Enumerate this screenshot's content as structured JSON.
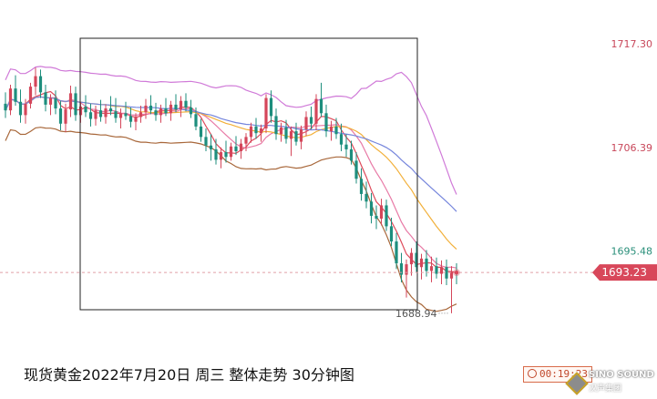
{
  "caption": "现货黄金2022年7月20日 周三 整体走势 30分钟图",
  "timer": "00:19:23",
  "logo": {
    "brand": "SINO SOUND",
    "sub": "汉声集团"
  },
  "colors": {
    "up": "#d4465a",
    "down": "#1d8e7d",
    "boll_upper": "#d07ad8",
    "boll_lower": "#a8673a",
    "ma_red": "#de4a5a",
    "ma_pink": "#e87aa6",
    "ma_orange": "#f2b03a",
    "ma_blue": "#7585dc",
    "price_tag": "#d8475a",
    "axis_text_red": "#c8475a",
    "axis_text_green": "#2a8f7a",
    "current_line": "#e0a0a8"
  },
  "chart_data": {
    "type": "candlestick",
    "title": "现货黄金2022年7月20日 周三 整体走势 30分钟图",
    "ylim": [
      1685.0,
      1720.0
    ],
    "y_ticks": [
      {
        "value": 1717.3,
        "label": "1717.30",
        "color": "red"
      },
      {
        "value": 1706.39,
        "label": "1706.39",
        "color": "red"
      },
      {
        "value": 1695.48,
        "label": "1695.48",
        "color": "green"
      }
    ],
    "current_price": {
      "value": 1693.23,
      "label": "1693.23"
    },
    "low_marker": {
      "value": 1688.94,
      "label": "1688.94",
      "index": 89
    },
    "candles": [
      [
        1711.0,
        1712.2,
        1709.5,
        1710.3
      ],
      [
        1710.3,
        1713.0,
        1709.8,
        1712.6
      ],
      [
        1712.6,
        1714.0,
        1710.8,
        1711.2
      ],
      [
        1711.2,
        1712.5,
        1709.0,
        1709.8
      ],
      [
        1709.8,
        1711.5,
        1708.9,
        1711.0
      ],
      [
        1711.0,
        1713.2,
        1710.5,
        1712.8
      ],
      [
        1712.8,
        1714.8,
        1711.9,
        1713.9
      ],
      [
        1713.9,
        1714.6,
        1711.6,
        1712.2
      ],
      [
        1712.2,
        1713.0,
        1710.2,
        1710.9
      ],
      [
        1710.9,
        1712.0,
        1709.8,
        1711.6
      ],
      [
        1711.6,
        1712.4,
        1709.9,
        1710.5
      ],
      [
        1710.5,
        1711.3,
        1708.2,
        1708.9
      ],
      [
        1708.9,
        1711.0,
        1708.0,
        1710.4
      ],
      [
        1710.4,
        1712.9,
        1709.6,
        1712.1
      ],
      [
        1712.1,
        1712.8,
        1709.2,
        1709.8
      ],
      [
        1709.8,
        1711.2,
        1709.0,
        1710.7
      ],
      [
        1710.7,
        1711.9,
        1709.6,
        1710.1
      ],
      [
        1710.1,
        1711.0,
        1708.6,
        1709.4
      ],
      [
        1709.4,
        1710.8,
        1708.7,
        1710.3
      ],
      [
        1710.3,
        1711.4,
        1709.1,
        1709.6
      ],
      [
        1709.6,
        1710.9,
        1708.9,
        1710.5
      ],
      [
        1710.5,
        1711.8,
        1709.8,
        1710.2
      ],
      [
        1710.2,
        1711.6,
        1709.0,
        1709.5
      ],
      [
        1709.5,
        1710.5,
        1708.4,
        1710.0
      ],
      [
        1710.0,
        1711.2,
        1709.3,
        1709.7
      ],
      [
        1709.7,
        1710.6,
        1708.5,
        1709.1
      ],
      [
        1709.1,
        1710.0,
        1708.2,
        1709.6
      ],
      [
        1709.6,
        1710.8,
        1709.0,
        1710.1
      ],
      [
        1710.1,
        1711.5,
        1709.4,
        1710.8
      ],
      [
        1710.8,
        1711.9,
        1709.9,
        1710.3
      ],
      [
        1710.3,
        1711.1,
        1709.2,
        1709.8
      ],
      [
        1709.8,
        1710.9,
        1709.0,
        1710.5
      ],
      [
        1710.5,
        1711.6,
        1709.7,
        1710.0
      ],
      [
        1710.0,
        1711.3,
        1709.2,
        1710.9
      ],
      [
        1710.9,
        1712.0,
        1710.1,
        1710.4
      ],
      [
        1710.4,
        1711.8,
        1709.6,
        1711.3
      ],
      [
        1711.3,
        1712.1,
        1710.2,
        1710.6
      ],
      [
        1710.6,
        1711.4,
        1709.5,
        1709.9
      ],
      [
        1709.9,
        1710.6,
        1708.2,
        1708.6
      ],
      [
        1708.6,
        1709.4,
        1707.0,
        1707.5
      ],
      [
        1707.5,
        1708.4,
        1706.0,
        1706.6
      ],
      [
        1706.6,
        1707.8,
        1705.0,
        1706.2
      ],
      [
        1706.2,
        1707.3,
        1704.6,
        1705.1
      ],
      [
        1705.1,
        1706.4,
        1704.2,
        1705.9
      ],
      [
        1705.9,
        1707.1,
        1704.8,
        1705.4
      ],
      [
        1705.4,
        1706.9,
        1705.0,
        1706.5
      ],
      [
        1706.5,
        1707.6,
        1705.6,
        1706.0
      ],
      [
        1706.0,
        1707.3,
        1705.2,
        1706.8
      ],
      [
        1706.8,
        1707.9,
        1706.0,
        1707.5
      ],
      [
        1707.5,
        1709.0,
        1706.9,
        1708.6
      ],
      [
        1708.6,
        1709.5,
        1707.3,
        1707.9
      ],
      [
        1707.9,
        1708.8,
        1707.0,
        1708.4
      ],
      [
        1708.4,
        1712.0,
        1707.9,
        1711.6
      ],
      [
        1711.6,
        1712.4,
        1709.0,
        1709.7
      ],
      [
        1709.7,
        1710.5,
        1707.2,
        1707.8
      ],
      [
        1707.8,
        1709.0,
        1707.0,
        1708.5
      ],
      [
        1708.5,
        1709.3,
        1706.8,
        1707.3
      ],
      [
        1707.3,
        1708.6,
        1705.5,
        1708.1
      ],
      [
        1708.1,
        1709.0,
        1706.6,
        1707.0
      ],
      [
        1707.0,
        1708.7,
        1706.2,
        1708.3
      ],
      [
        1708.3,
        1710.2,
        1707.6,
        1709.6
      ],
      [
        1709.6,
        1710.7,
        1708.3,
        1708.9
      ],
      [
        1708.9,
        1712.0,
        1708.2,
        1711.5
      ],
      [
        1711.5,
        1713.2,
        1709.6,
        1710.0
      ],
      [
        1710.0,
        1710.9,
        1707.5,
        1708.1
      ],
      [
        1708.1,
        1709.2,
        1707.1,
        1708.6
      ],
      [
        1708.6,
        1709.5,
        1707.3,
        1707.8
      ],
      [
        1707.8,
        1708.9,
        1706.0,
        1706.7
      ],
      [
        1706.7,
        1707.8,
        1705.4,
        1706.2
      ],
      [
        1706.2,
        1707.1,
        1704.6,
        1705.0
      ],
      [
        1705.0,
        1705.9,
        1702.6,
        1703.1
      ],
      [
        1703.1,
        1704.2,
        1700.8,
        1701.5
      ],
      [
        1701.5,
        1702.8,
        1700.0,
        1700.7
      ],
      [
        1700.7,
        1701.6,
        1698.4,
        1699.2
      ],
      [
        1699.2,
        1700.3,
        1697.8,
        1698.9
      ],
      [
        1698.9,
        1701.0,
        1698.2,
        1700.3
      ],
      [
        1700.3,
        1700.9,
        1697.6,
        1698.1
      ],
      [
        1698.1,
        1699.0,
        1696.0,
        1696.5
      ],
      [
        1696.5,
        1697.4,
        1693.6,
        1694.2
      ],
      [
        1694.2,
        1695.3,
        1692.2,
        1693.0
      ],
      [
        1693.0,
        1694.6,
        1690.6,
        1694.1
      ],
      [
        1694.1,
        1695.8,
        1692.9,
        1695.3
      ],
      [
        1695.3,
        1696.5,
        1693.3,
        1693.8
      ],
      [
        1693.8,
        1695.2,
        1692.5,
        1694.7
      ],
      [
        1694.7,
        1695.6,
        1692.8,
        1693.4
      ],
      [
        1693.4,
        1694.9,
        1692.2,
        1693.9
      ],
      [
        1693.9,
        1694.8,
        1692.6,
        1693.1
      ],
      [
        1693.1,
        1694.5,
        1692.0,
        1693.8
      ],
      [
        1693.8,
        1694.6,
        1691.9,
        1692.6
      ],
      [
        1692.6,
        1693.9,
        1688.94,
        1693.3
      ],
      [
        1693.3,
        1694.2,
        1692.0,
        1693.23
      ]
    ]
  }
}
